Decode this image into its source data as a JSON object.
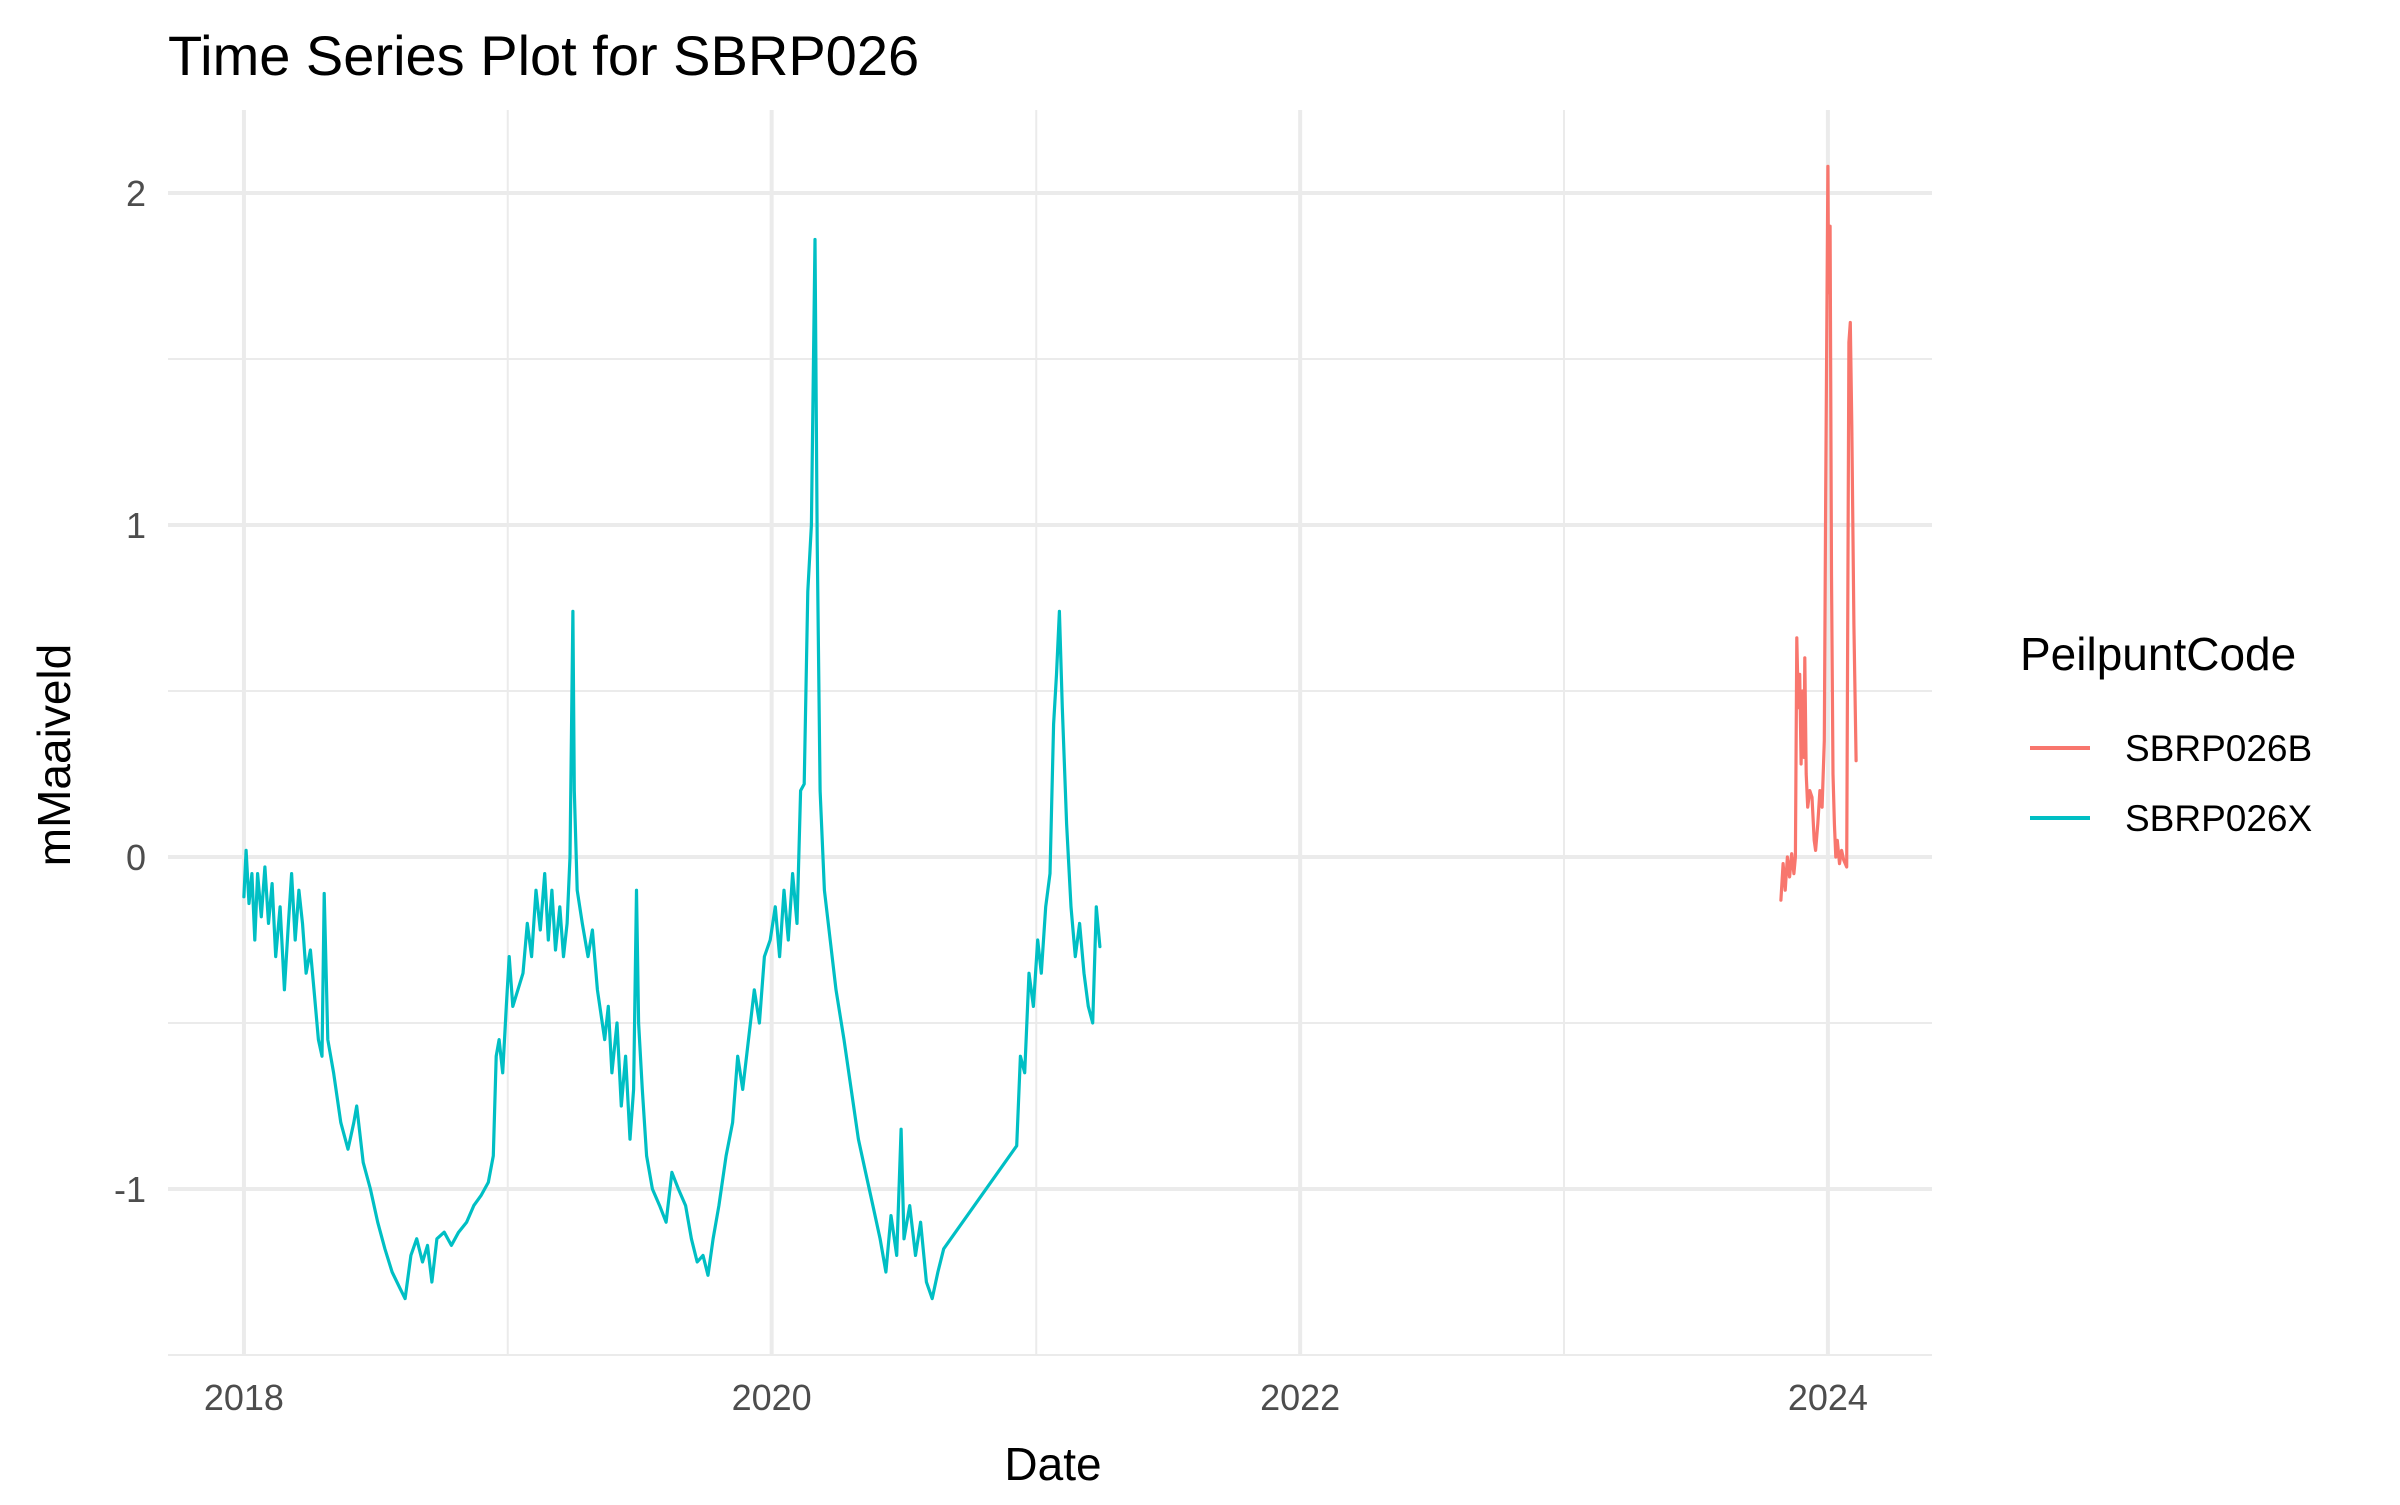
{
  "chart_data": {
    "type": "line",
    "title": "Time Series Plot for SBRP026",
    "xlabel": "Date",
    "ylabel": "mMaaiveld",
    "x_ticks": [
      "2018",
      "2020",
      "2022",
      "2024"
    ],
    "y_ticks": [
      "-1",
      "0",
      "1",
      "2"
    ],
    "xlim": [
      "2017-09-18",
      "2024-05-24"
    ],
    "ylim": [
      -1.5,
      2.25
    ],
    "grid": true,
    "legend": {
      "title": "PeilpuntCode",
      "position": "right"
    },
    "series": [
      {
        "name": "SBRP026B",
        "color": "#F8766D",
        "points": [
          [
            "2023-10-28",
            -0.13
          ],
          [
            "2023-10-31",
            -0.02
          ],
          [
            "2023-11-03",
            -0.1
          ],
          [
            "2023-11-06",
            0.0
          ],
          [
            "2023-11-09",
            -0.06
          ],
          [
            "2023-11-12",
            0.01
          ],
          [
            "2023-11-15",
            -0.05
          ],
          [
            "2023-11-17",
            0.0
          ],
          [
            "2023-11-19",
            0.66
          ],
          [
            "2023-11-21",
            0.45
          ],
          [
            "2023-11-23",
            0.55
          ],
          [
            "2023-11-25",
            0.28
          ],
          [
            "2023-11-27",
            0.5
          ],
          [
            "2023-11-29",
            0.3
          ],
          [
            "2023-11-30",
            0.6
          ],
          [
            "2023-12-02",
            0.25
          ],
          [
            "2023-12-04",
            0.15
          ],
          [
            "2023-12-07",
            0.2
          ],
          [
            "2023-12-10",
            0.18
          ],
          [
            "2023-12-13",
            0.05
          ],
          [
            "2023-12-15",
            0.02
          ],
          [
            "2023-12-18",
            0.1
          ],
          [
            "2023-12-21",
            0.2
          ],
          [
            "2023-12-24",
            0.15
          ],
          [
            "2023-12-27",
            0.35
          ],
          [
            "2023-12-29",
            1.1
          ],
          [
            "2024-01-01",
            2.08
          ],
          [
            "2024-01-02",
            1.7
          ],
          [
            "2024-01-04",
            1.9
          ],
          [
            "2024-01-06",
            0.85
          ],
          [
            "2024-01-08",
            0.25
          ],
          [
            "2024-01-10",
            0.1
          ],
          [
            "2024-01-12",
            0.0
          ],
          [
            "2024-01-14",
            0.05
          ],
          [
            "2024-01-17",
            -0.02
          ],
          [
            "2024-01-20",
            0.02
          ],
          [
            "2024-01-23",
            -0.01
          ],
          [
            "2024-01-27",
            -0.03
          ],
          [
            "2024-01-30",
            1.55
          ],
          [
            "2024-02-01",
            1.61
          ],
          [
            "2024-02-03",
            1.3
          ],
          [
            "2024-02-06",
            0.7
          ],
          [
            "2024-02-09",
            0.29
          ]
        ]
      },
      {
        "name": "SBRP026X",
        "color": "#00BFC4",
        "points": [
          [
            "2018-01-01",
            -0.12
          ],
          [
            "2018-01-04",
            0.02
          ],
          [
            "2018-01-08",
            -0.14
          ],
          [
            "2018-01-12",
            -0.05
          ],
          [
            "2018-01-16",
            -0.25
          ],
          [
            "2018-01-20",
            -0.05
          ],
          [
            "2018-01-25",
            -0.18
          ],
          [
            "2018-01-30",
            -0.03
          ],
          [
            "2018-02-04",
            -0.2
          ],
          [
            "2018-02-09",
            -0.08
          ],
          [
            "2018-02-14",
            -0.3
          ],
          [
            "2018-02-20",
            -0.15
          ],
          [
            "2018-02-26",
            -0.4
          ],
          [
            "2018-03-03",
            -0.22
          ],
          [
            "2018-03-08",
            -0.05
          ],
          [
            "2018-03-13",
            -0.25
          ],
          [
            "2018-03-18",
            -0.1
          ],
          [
            "2018-03-23",
            -0.2
          ],
          [
            "2018-03-28",
            -0.35
          ],
          [
            "2018-04-03",
            -0.28
          ],
          [
            "2018-04-08",
            -0.4
          ],
          [
            "2018-04-14",
            -0.55
          ],
          [
            "2018-04-19",
            -0.6
          ],
          [
            "2018-04-22",
            -0.11
          ],
          [
            "2018-04-27",
            -0.55
          ],
          [
            "2018-05-05",
            -0.65
          ],
          [
            "2018-05-15",
            -0.8
          ],
          [
            "2018-05-25",
            -0.88
          ],
          [
            "2018-06-02",
            -0.8
          ],
          [
            "2018-06-06",
            -0.75
          ],
          [
            "2018-06-15",
            -0.92
          ],
          [
            "2018-06-25",
            -1.0
          ],
          [
            "2018-07-05",
            -1.1
          ],
          [
            "2018-07-15",
            -1.18
          ],
          [
            "2018-07-25",
            -1.25
          ],
          [
            "2018-08-05",
            -1.3
          ],
          [
            "2018-08-12",
            -1.33
          ],
          [
            "2018-08-20",
            -1.2
          ],
          [
            "2018-08-28",
            -1.15
          ],
          [
            "2018-09-05",
            -1.22
          ],
          [
            "2018-09-12",
            -1.17
          ],
          [
            "2018-09-18",
            -1.28
          ],
          [
            "2018-09-25",
            -1.15
          ],
          [
            "2018-10-05",
            -1.13
          ],
          [
            "2018-10-15",
            -1.17
          ],
          [
            "2018-10-25",
            -1.13
          ],
          [
            "2018-11-05",
            -1.1
          ],
          [
            "2018-11-15",
            -1.05
          ],
          [
            "2018-11-25",
            -1.02
          ],
          [
            "2018-12-05",
            -0.98
          ],
          [
            "2018-12-12",
            -0.9
          ],
          [
            "2018-12-16",
            -0.6
          ],
          [
            "2018-12-20",
            -0.55
          ],
          [
            "2018-12-25",
            -0.65
          ],
          [
            "2018-12-30",
            -0.45
          ],
          [
            "2019-01-03",
            -0.3
          ],
          [
            "2019-01-08",
            -0.45
          ],
          [
            "2019-01-15",
            -0.4
          ],
          [
            "2019-01-22",
            -0.35
          ],
          [
            "2019-01-28",
            -0.2
          ],
          [
            "2019-02-03",
            -0.3
          ],
          [
            "2019-02-09",
            -0.1
          ],
          [
            "2019-02-15",
            -0.22
          ],
          [
            "2019-02-21",
            -0.05
          ],
          [
            "2019-02-26",
            -0.25
          ],
          [
            "2019-03-03",
            -0.1
          ],
          [
            "2019-03-08",
            -0.28
          ],
          [
            "2019-03-14",
            -0.15
          ],
          [
            "2019-03-19",
            -0.3
          ],
          [
            "2019-03-24",
            -0.2
          ],
          [
            "2019-03-28",
            0.0
          ],
          [
            "2019-04-01",
            0.74
          ],
          [
            "2019-04-03",
            0.2
          ],
          [
            "2019-04-07",
            -0.1
          ],
          [
            "2019-04-14",
            -0.2
          ],
          [
            "2019-04-22",
            -0.3
          ],
          [
            "2019-04-28",
            -0.22
          ],
          [
            "2019-05-05",
            -0.4
          ],
          [
            "2019-05-15",
            -0.55
          ],
          [
            "2019-05-20",
            -0.45
          ],
          [
            "2019-05-25",
            -0.65
          ],
          [
            "2019-06-01",
            -0.5
          ],
          [
            "2019-06-07",
            -0.75
          ],
          [
            "2019-06-13",
            -0.6
          ],
          [
            "2019-06-19",
            -0.85
          ],
          [
            "2019-06-24",
            -0.7
          ],
          [
            "2019-06-28",
            -0.1
          ],
          [
            "2019-07-01",
            -0.5
          ],
          [
            "2019-07-06",
            -0.7
          ],
          [
            "2019-07-12",
            -0.9
          ],
          [
            "2019-07-20",
            -1.0
          ],
          [
            "2019-07-30",
            -1.05
          ],
          [
            "2019-08-08",
            -1.1
          ],
          [
            "2019-08-16",
            -0.95
          ],
          [
            "2019-08-25",
            -1.0
          ],
          [
            "2019-09-04",
            -1.05
          ],
          [
            "2019-09-12",
            -1.15
          ],
          [
            "2019-09-20",
            -1.22
          ],
          [
            "2019-09-28",
            -1.2
          ],
          [
            "2019-10-05",
            -1.26
          ],
          [
            "2019-10-12",
            -1.15
          ],
          [
            "2019-10-20",
            -1.05
          ],
          [
            "2019-10-30",
            -0.9
          ],
          [
            "2019-11-08",
            -0.8
          ],
          [
            "2019-11-15",
            -0.6
          ],
          [
            "2019-11-22",
            -0.7
          ],
          [
            "2019-11-30",
            -0.55
          ],
          [
            "2019-12-08",
            -0.4
          ],
          [
            "2019-12-15",
            -0.5
          ],
          [
            "2019-12-22",
            -0.3
          ],
          [
            "2019-12-30",
            -0.25
          ],
          [
            "2020-01-06",
            -0.15
          ],
          [
            "2020-01-12",
            -0.3
          ],
          [
            "2020-01-18",
            -0.1
          ],
          [
            "2020-01-24",
            -0.25
          ],
          [
            "2020-01-30",
            -0.05
          ],
          [
            "2020-02-05",
            -0.2
          ],
          [
            "2020-02-10",
            0.2
          ],
          [
            "2020-02-15",
            0.22
          ],
          [
            "2020-02-20",
            0.8
          ],
          [
            "2020-02-25",
            1.0
          ],
          [
            "2020-03-01",
            1.86
          ],
          [
            "2020-03-04",
            0.95
          ],
          [
            "2020-03-08",
            0.2
          ],
          [
            "2020-03-14",
            -0.1
          ],
          [
            "2020-03-22",
            -0.25
          ],
          [
            "2020-03-30",
            -0.4
          ],
          [
            "2020-04-10",
            -0.55
          ],
          [
            "2020-04-20",
            -0.7
          ],
          [
            "2020-04-30",
            -0.85
          ],
          [
            "2020-05-10",
            -0.95
          ],
          [
            "2020-05-20",
            -1.05
          ],
          [
            "2020-05-30",
            -1.15
          ],
          [
            "2020-06-07",
            -1.25
          ],
          [
            "2020-06-14",
            -1.08
          ],
          [
            "2020-06-22",
            -1.2
          ],
          [
            "2020-06-28",
            -0.82
          ],
          [
            "2020-07-02",
            -1.15
          ],
          [
            "2020-07-10",
            -1.05
          ],
          [
            "2020-07-18",
            -1.2
          ],
          [
            "2020-07-25",
            -1.1
          ],
          [
            "2020-08-02",
            -1.28
          ],
          [
            "2020-08-10",
            -1.33
          ],
          [
            "2020-08-18",
            -1.25
          ],
          [
            "2020-08-26",
            -1.18
          ],
          [
            "2020-12-05",
            -0.87
          ],
          [
            "2020-12-10",
            -0.6
          ],
          [
            "2020-12-16",
            -0.65
          ],
          [
            "2020-12-22",
            -0.35
          ],
          [
            "2020-12-28",
            -0.45
          ],
          [
            "2021-01-03",
            -0.25
          ],
          [
            "2021-01-08",
            -0.35
          ],
          [
            "2021-01-14",
            -0.15
          ],
          [
            "2021-01-20",
            -0.05
          ],
          [
            "2021-01-25",
            0.4
          ],
          [
            "2021-01-29",
            0.55
          ],
          [
            "2021-02-02",
            0.74
          ],
          [
            "2021-02-06",
            0.45
          ],
          [
            "2021-02-12",
            0.1
          ],
          [
            "2021-02-18",
            -0.15
          ],
          [
            "2021-02-24",
            -0.3
          ],
          [
            "2021-03-02",
            -0.2
          ],
          [
            "2021-03-08",
            -0.35
          ],
          [
            "2021-03-14",
            -0.45
          ],
          [
            "2021-03-20",
            -0.5
          ],
          [
            "2021-03-25",
            -0.15
          ],
          [
            "2021-03-30",
            -0.27
          ]
        ]
      }
    ]
  }
}
